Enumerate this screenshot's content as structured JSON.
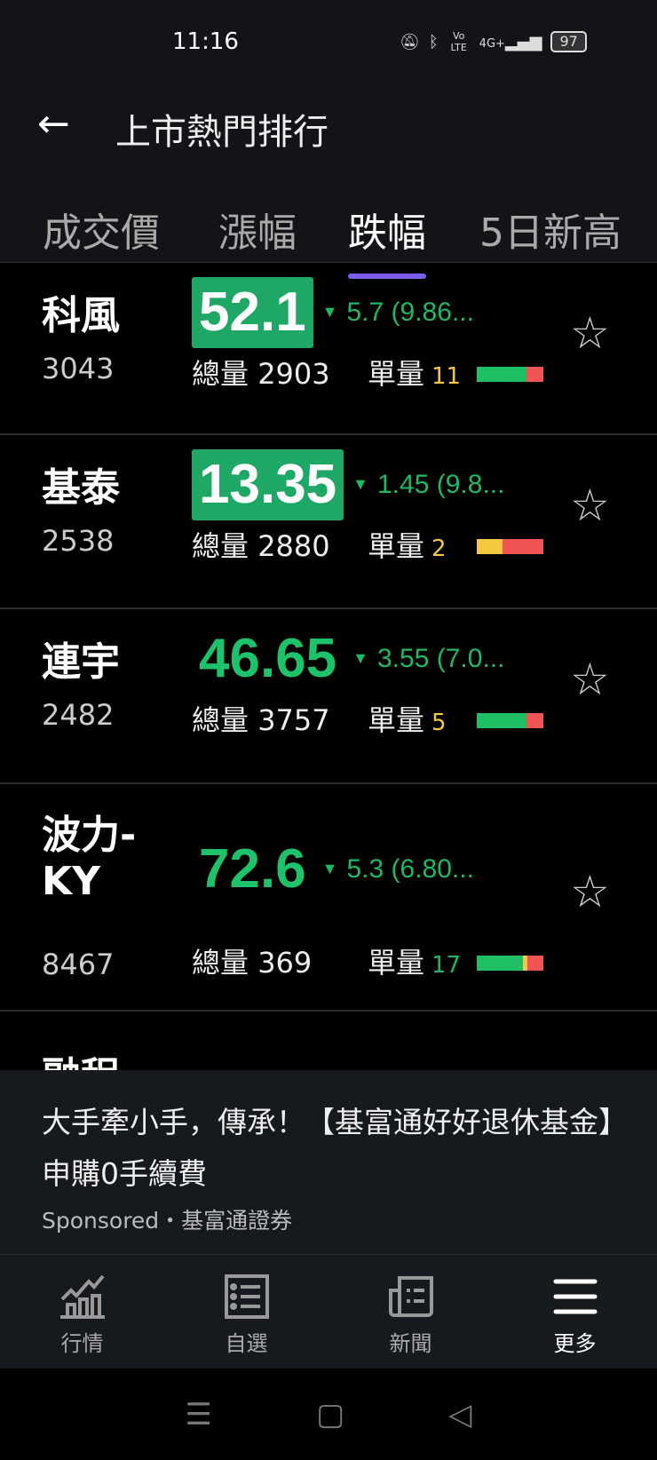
{
  "status": {
    "time": "11:16",
    "battery": "97",
    "network": "4G+",
    "volte": "Vo LTE"
  },
  "header": {
    "title": "上市熱門排行"
  },
  "tabs": [
    {
      "label": "成交價",
      "active": false
    },
    {
      "label": "漲幅",
      "active": false
    },
    {
      "label": "跌幅",
      "active": true
    },
    {
      "label": "5日新高",
      "active": false
    }
  ],
  "labels": {
    "total": "總量",
    "unit": "單量"
  },
  "rows": [
    {
      "name": "科風",
      "code": "3043",
      "price": "52.1",
      "change": "5.7 (9.86...",
      "total": "2903",
      "unit": "11",
      "unit_color": "#f5c842",
      "boxed": true,
      "bar": [
        {
          "c": "#1fc064",
          "v": 74
        },
        {
          "c": "#f05454",
          "v": 26
        }
      ]
    },
    {
      "name": "基泰",
      "code": "2538",
      "price": "13.35",
      "change": "1.45 (9.8...",
      "total": "2880",
      "unit": "2",
      "unit_color": "#f5c842",
      "boxed": true,
      "bar": [
        {
          "c": "#f5c842",
          "v": 38
        },
        {
          "c": "#f05454",
          "v": 62
        }
      ]
    },
    {
      "name": "連宇",
      "code": "2482",
      "price": "46.65",
      "change": "3.55 (7.0...",
      "total": "3757",
      "unit": "5",
      "unit_color": "#f5c842",
      "boxed": false,
      "bar": [
        {
          "c": "#1fc064",
          "v": 74
        },
        {
          "c": "#f05454",
          "v": 26
        }
      ]
    },
    {
      "name": "波力-KY",
      "code": "8467",
      "price": "72.6",
      "change": "5.3 (6.80...",
      "total": "369",
      "unit": "17",
      "unit_color": "#1fb865",
      "boxed": false,
      "bar": [
        {
          "c": "#1fc064",
          "v": 69
        },
        {
          "c": "#f5c842",
          "v": 7
        },
        {
          "c": "#f05454",
          "v": 24
        }
      ]
    }
  ],
  "partial_row": {
    "name": "融程"
  },
  "ad": {
    "text": "大手牽小手，傳承！【基富通好好退休基金】申購0手續費",
    "sponsor": "Sponsored・基富通證券"
  },
  "nav": [
    {
      "label": "行情",
      "icon": "chart-icon"
    },
    {
      "label": "自選",
      "icon": "list-icon"
    },
    {
      "label": "新聞",
      "icon": "news-icon"
    },
    {
      "label": "更多",
      "icon": "menu-icon",
      "active": true
    }
  ],
  "colors": {
    "down": "#1fb865",
    "box": "#1fa865",
    "tab_indicator": "#7c5cf2"
  }
}
